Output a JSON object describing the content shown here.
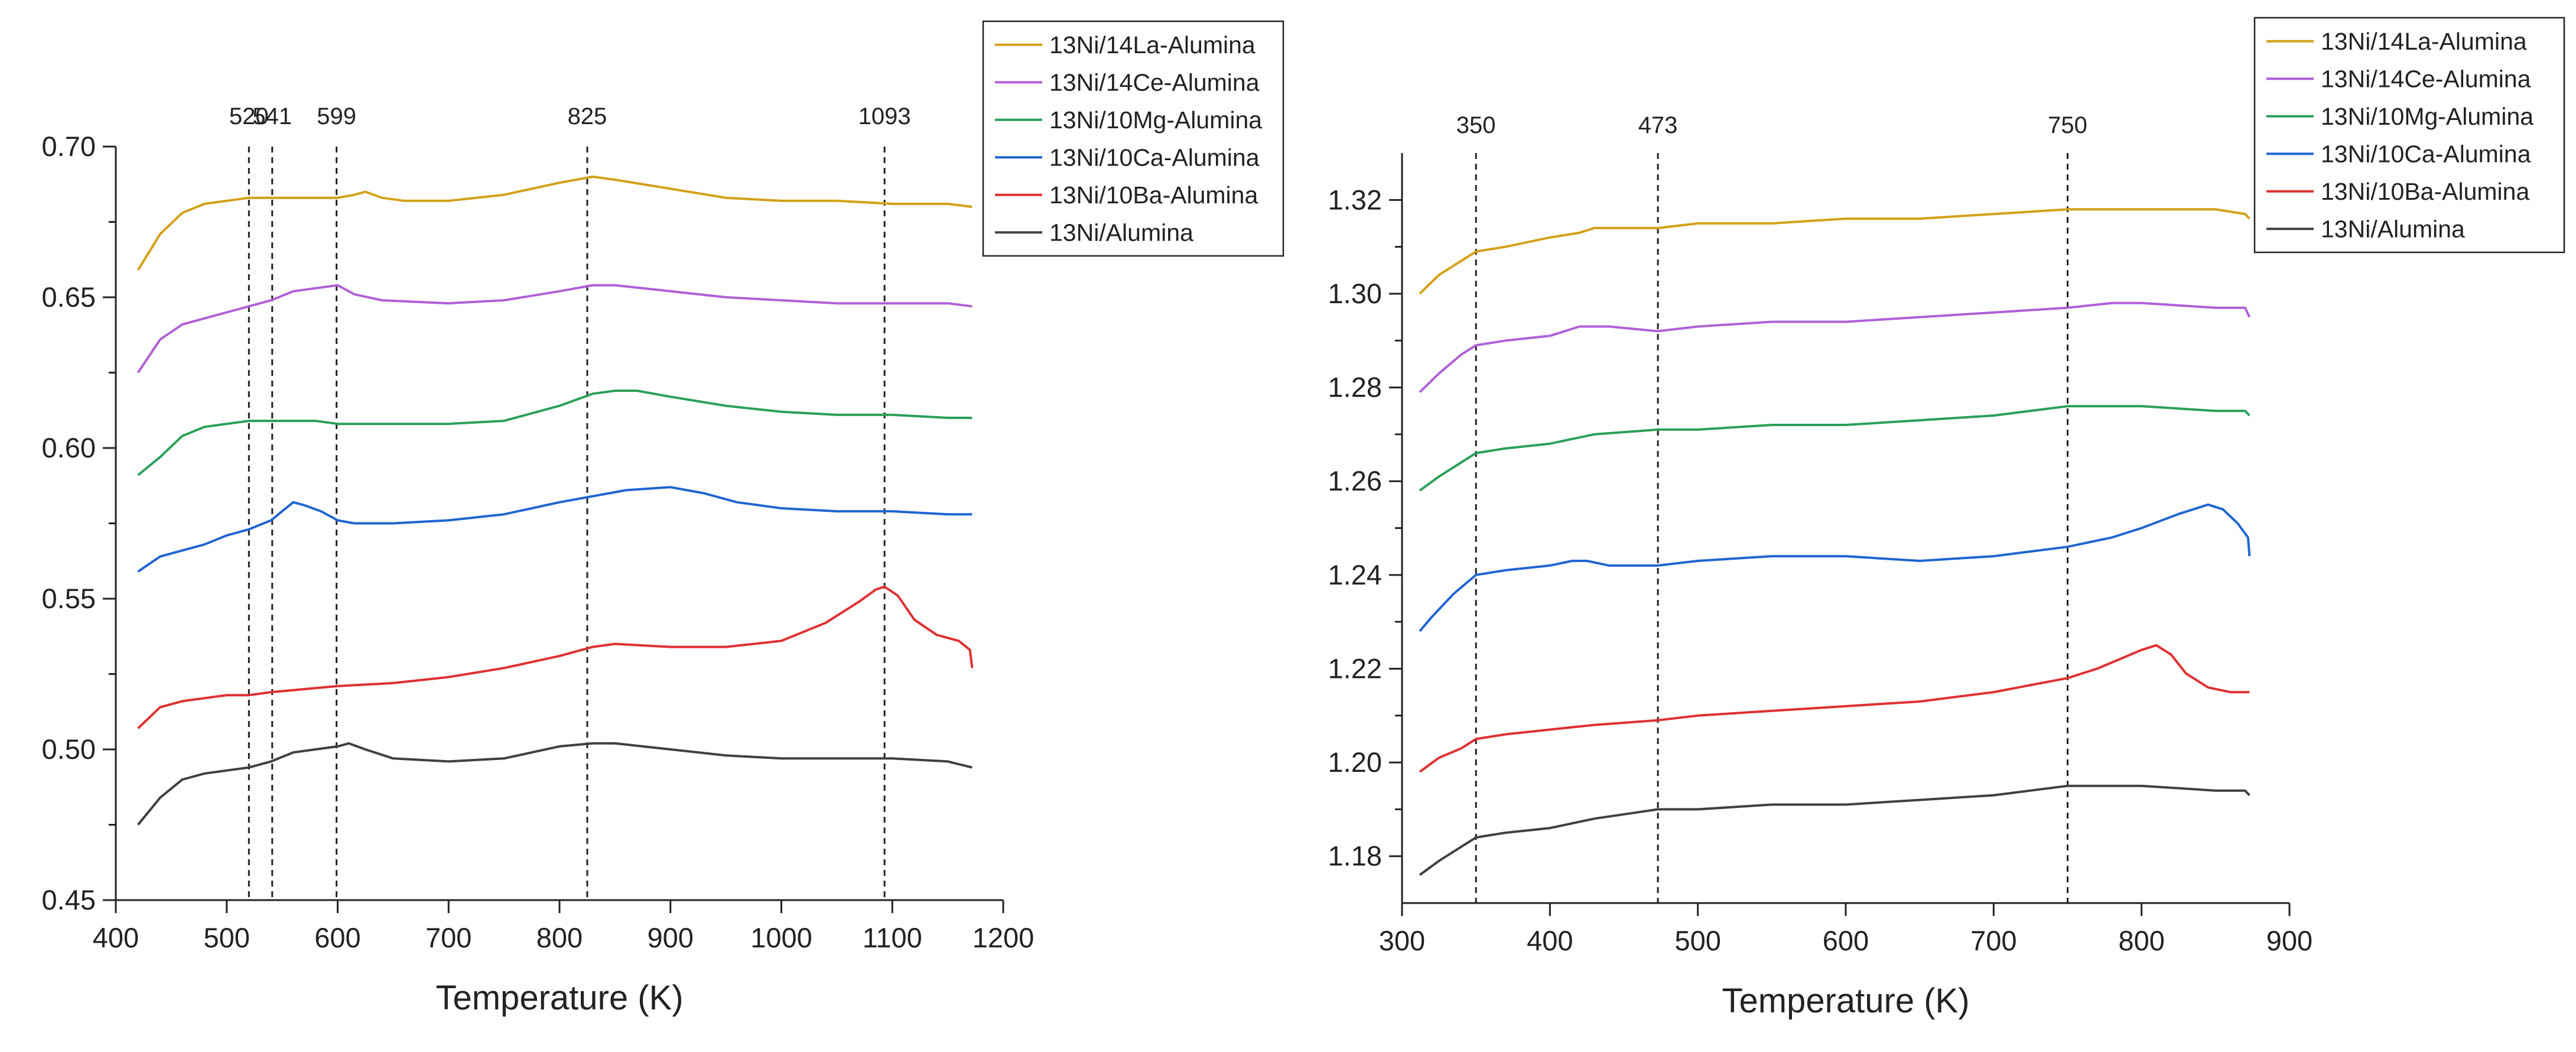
{
  "chart_data": [
    {
      "type": "line",
      "title": "",
      "xlabel": "Temperature (K)",
      "ylabel": "",
      "xlim": [
        400,
        1200
      ],
      "ylim": [
        0.45,
        0.7
      ],
      "x_ticks": [
        "400",
        "500",
        "600",
        "700",
        "800",
        "900",
        "1000",
        "1100",
        "1200"
      ],
      "y_ticks": [
        "0.45",
        "0.50",
        "0.55",
        "0.60",
        "0.65",
        "0.70"
      ],
      "legend_position": "top-right",
      "vlines": [
        {
          "x": 520,
          "label": "520"
        },
        {
          "x": 541,
          "label": "541"
        },
        {
          "x": 599,
          "label": "599"
        },
        {
          "x": 825,
          "label": "825"
        },
        {
          "x": 1093,
          "label": "1093"
        }
      ],
      "series": [
        {
          "name": "13Ni/14La-Alumina",
          "color": "#d4a017",
          "x": [
            420,
            440,
            460,
            480,
            500,
            520,
            540,
            560,
            580,
            600,
            615,
            625,
            640,
            660,
            700,
            750,
            800,
            830,
            850,
            900,
            950,
            1000,
            1050,
            1100,
            1150,
            1172
          ],
          "y": [
            0.659,
            0.671,
            0.678,
            0.681,
            0.682,
            0.683,
            0.683,
            0.683,
            0.683,
            0.683,
            0.684,
            0.685,
            0.683,
            0.682,
            0.682,
            0.684,
            0.688,
            0.69,
            0.689,
            0.686,
            0.683,
            0.682,
            0.682,
            0.681,
            0.681,
            0.68
          ]
        },
        {
          "name": "13Ni/14Ce-Alumina",
          "color": "#b060d8",
          "x": [
            420,
            440,
            460,
            480,
            500,
            520,
            540,
            560,
            580,
            600,
            615,
            640,
            700,
            750,
            800,
            830,
            850,
            900,
            950,
            1000,
            1050,
            1100,
            1150,
            1172
          ],
          "y": [
            0.625,
            0.636,
            0.641,
            0.643,
            0.645,
            0.647,
            0.649,
            0.652,
            0.653,
            0.654,
            0.651,
            0.649,
            0.648,
            0.649,
            0.652,
            0.654,
            0.654,
            0.652,
            0.65,
            0.649,
            0.648,
            0.648,
            0.648,
            0.647
          ]
        },
        {
          "name": "13Ni/10Mg-Alumina",
          "color": "#2aa05a",
          "x": [
            420,
            440,
            460,
            480,
            500,
            520,
            540,
            560,
            580,
            600,
            650,
            700,
            750,
            800,
            830,
            850,
            870,
            900,
            950,
            1000,
            1050,
            1100,
            1150,
            1172
          ],
          "y": [
            0.591,
            0.597,
            0.604,
            0.607,
            0.608,
            0.609,
            0.609,
            0.609,
            0.609,
            0.608,
            0.608,
            0.608,
            0.609,
            0.614,
            0.618,
            0.619,
            0.619,
            0.617,
            0.614,
            0.612,
            0.611,
            0.611,
            0.61,
            0.61
          ]
        },
        {
          "name": "13Ni/10Ca-Alumina",
          "color": "#1f66d1",
          "x": [
            420,
            440,
            460,
            480,
            500,
            520,
            540,
            550,
            560,
            570,
            585,
            600,
            615,
            650,
            700,
            750,
            800,
            830,
            860,
            900,
            930,
            960,
            1000,
            1050,
            1100,
            1150,
            1172
          ],
          "y": [
            0.559,
            0.564,
            0.566,
            0.568,
            0.571,
            0.573,
            0.576,
            0.579,
            0.582,
            0.581,
            0.579,
            0.576,
            0.575,
            0.575,
            0.576,
            0.578,
            0.582,
            0.584,
            0.586,
            0.587,
            0.585,
            0.582,
            0.58,
            0.579,
            0.579,
            0.578,
            0.578
          ]
        },
        {
          "name": "13Ni/10Ba-Alumina",
          "color": "#e03030",
          "x": [
            420,
            440,
            460,
            480,
            500,
            520,
            540,
            600,
            650,
            700,
            750,
            800,
            830,
            850,
            900,
            950,
            1000,
            1040,
            1070,
            1085,
            1093,
            1105,
            1120,
            1140,
            1160,
            1170,
            1172
          ],
          "y": [
            0.507,
            0.514,
            0.516,
            0.517,
            0.518,
            0.518,
            0.519,
            0.521,
            0.522,
            0.524,
            0.527,
            0.531,
            0.534,
            0.535,
            0.534,
            0.534,
            0.536,
            0.542,
            0.549,
            0.553,
            0.554,
            0.551,
            0.543,
            0.538,
            0.536,
            0.533,
            0.527
          ]
        },
        {
          "name": "13Ni/Alumina",
          "color": "#404040",
          "x": [
            420,
            440,
            460,
            480,
            500,
            520,
            540,
            560,
            580,
            600,
            610,
            625,
            650,
            700,
            750,
            800,
            830,
            850,
            900,
            950,
            1000,
            1050,
            1100,
            1150,
            1172
          ],
          "y": [
            0.475,
            0.484,
            0.49,
            0.492,
            0.493,
            0.494,
            0.496,
            0.499,
            0.5,
            0.501,
            0.502,
            0.5,
            0.497,
            0.496,
            0.497,
            0.501,
            0.502,
            0.502,
            0.5,
            0.498,
            0.497,
            0.497,
            0.497,
            0.496,
            0.494
          ]
        }
      ]
    },
    {
      "type": "line",
      "title": "",
      "xlabel": "Temperature (K)",
      "ylabel": "",
      "xlim": [
        300,
        900
      ],
      "ylim": [
        1.17,
        1.33
      ],
      "x_ticks": [
        "300",
        "400",
        "500",
        "600",
        "700",
        "800",
        "900"
      ],
      "y_ticks": [
        "1.18",
        "1.20",
        "1.22",
        "1.24",
        "1.26",
        "1.28",
        "1.30",
        "1.32"
      ],
      "legend_position": "top-right",
      "vlines": [
        {
          "x": 350,
          "label": "350"
        },
        {
          "x": 473,
          "label": "473"
        },
        {
          "x": 750,
          "label": "750"
        }
      ],
      "series": [
        {
          "name": "13Ni/14La-Alumina",
          "color": "#d4a017",
          "x": [
            312,
            325,
            340,
            350,
            370,
            400,
            420,
            430,
            450,
            473,
            500,
            550,
            600,
            650,
            700,
            750,
            780,
            800,
            850,
            870,
            873
          ],
          "y": [
            1.3,
            1.304,
            1.307,
            1.309,
            1.31,
            1.312,
            1.313,
            1.314,
            1.314,
            1.314,
            1.315,
            1.315,
            1.316,
            1.316,
            1.317,
            1.318,
            1.318,
            1.318,
            1.318,
            1.317,
            1.316
          ]
        },
        {
          "name": "13Ni/14Ce-Alumina",
          "color": "#b060d8",
          "x": [
            312,
            325,
            340,
            350,
            370,
            400,
            410,
            420,
            440,
            473,
            500,
            550,
            600,
            650,
            700,
            750,
            780,
            800,
            850,
            870,
            873
          ],
          "y": [
            1.279,
            1.283,
            1.287,
            1.289,
            1.29,
            1.291,
            1.292,
            1.293,
            1.293,
            1.292,
            1.293,
            1.294,
            1.294,
            1.295,
            1.296,
            1.297,
            1.298,
            1.298,
            1.297,
            1.297,
            1.295
          ]
        },
        {
          "name": "13Ni/10Mg-Alumina",
          "color": "#2aa05a",
          "x": [
            312,
            325,
            340,
            350,
            370,
            400,
            430,
            473,
            500,
            550,
            600,
            650,
            700,
            750,
            780,
            800,
            850,
            870,
            873
          ],
          "y": [
            1.258,
            1.261,
            1.264,
            1.266,
            1.267,
            1.268,
            1.27,
            1.271,
            1.271,
            1.272,
            1.272,
            1.273,
            1.274,
            1.276,
            1.276,
            1.276,
            1.275,
            1.275,
            1.274
          ]
        },
        {
          "name": "13Ni/10Ca-Alumina",
          "color": "#1f66d1",
          "x": [
            312,
            320,
            335,
            350,
            370,
            400,
            415,
            425,
            440,
            473,
            500,
            550,
            600,
            650,
            700,
            750,
            780,
            800,
            825,
            845,
            855,
            865,
            872,
            873
          ],
          "y": [
            1.228,
            1.231,
            1.236,
            1.24,
            1.241,
            1.242,
            1.243,
            1.243,
            1.242,
            1.242,
            1.243,
            1.244,
            1.244,
            1.243,
            1.244,
            1.246,
            1.248,
            1.25,
            1.253,
            1.255,
            1.254,
            1.251,
            1.248,
            1.244
          ]
        },
        {
          "name": "13Ni/10Ba-Alumina",
          "color": "#e03030",
          "x": [
            312,
            325,
            340,
            350,
            370,
            400,
            430,
            473,
            500,
            550,
            600,
            650,
            700,
            750,
            770,
            785,
            800,
            810,
            820,
            830,
            845,
            860,
            873
          ],
          "y": [
            1.198,
            1.201,
            1.203,
            1.205,
            1.206,
            1.207,
            1.208,
            1.209,
            1.21,
            1.211,
            1.212,
            1.213,
            1.215,
            1.218,
            1.22,
            1.222,
            1.224,
            1.225,
            1.223,
            1.219,
            1.216,
            1.215,
            1.215
          ]
        },
        {
          "name": "13Ni/Alumina",
          "color": "#404040",
          "x": [
            312,
            325,
            340,
            350,
            370,
            400,
            430,
            473,
            500,
            550,
            600,
            650,
            700,
            750,
            800,
            850,
            870,
            873
          ],
          "y": [
            1.176,
            1.179,
            1.182,
            1.184,
            1.185,
            1.186,
            1.188,
            1.19,
            1.19,
            1.191,
            1.191,
            1.192,
            1.193,
            1.195,
            1.195,
            1.194,
            1.194,
            1.193
          ]
        }
      ]
    }
  ]
}
